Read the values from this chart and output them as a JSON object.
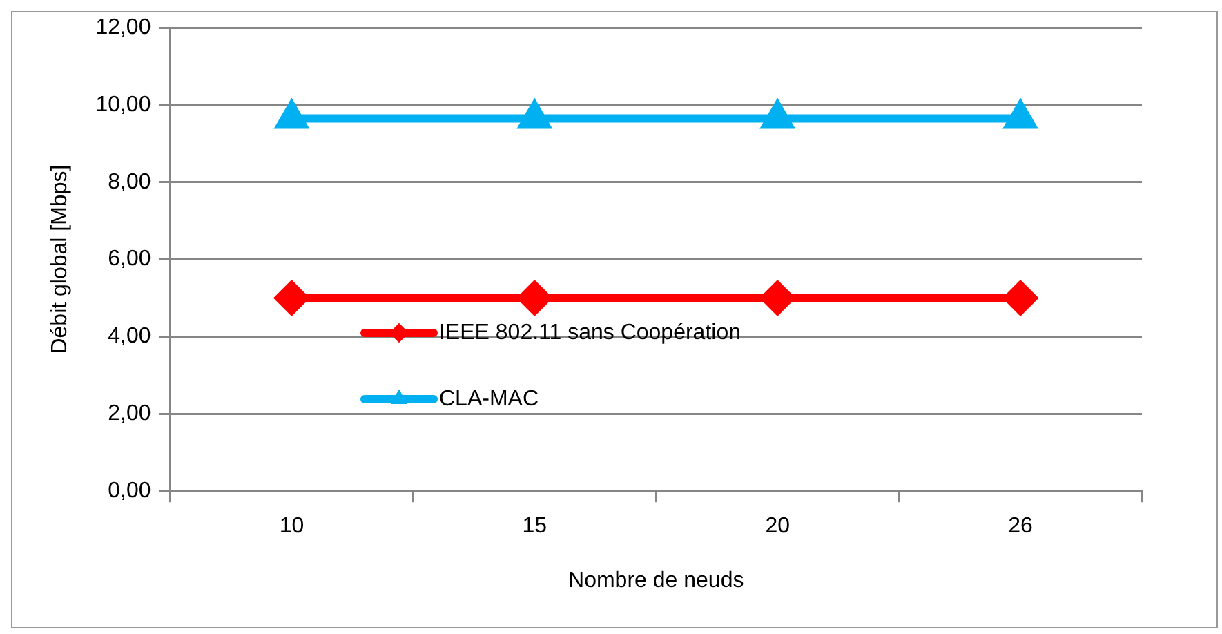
{
  "chart_data": {
    "type": "line",
    "xlabel": "Nombre de neuds",
    "ylabel": "Débit global [Mbps]",
    "categories": [
      "10",
      "15",
      "20",
      "26"
    ],
    "series": [
      {
        "name": "IEEE 802.11 sans Coopération",
        "color": "#ff0000",
        "marker": "diamond",
        "values": [
          5.0,
          5.0,
          5.0,
          5.0
        ]
      },
      {
        "name": "CLA-MAC",
        "color": "#00b0f0",
        "marker": "triangle",
        "values": [
          9.65,
          9.65,
          9.65,
          9.65
        ]
      }
    ],
    "ylim": [
      0,
      12
    ],
    "yticks": [
      {
        "value": 0,
        "label": "0,00"
      },
      {
        "value": 2,
        "label": "2,00"
      },
      {
        "value": 4,
        "label": "4,00"
      },
      {
        "value": 6,
        "label": "6,00"
      },
      {
        "value": 8,
        "label": "8,00"
      },
      {
        "value": 10,
        "label": "10,00"
      },
      {
        "value": 12,
        "label": "12,00"
      }
    ],
    "grid": "y",
    "legend": "left",
    "line_style": "solid"
  }
}
